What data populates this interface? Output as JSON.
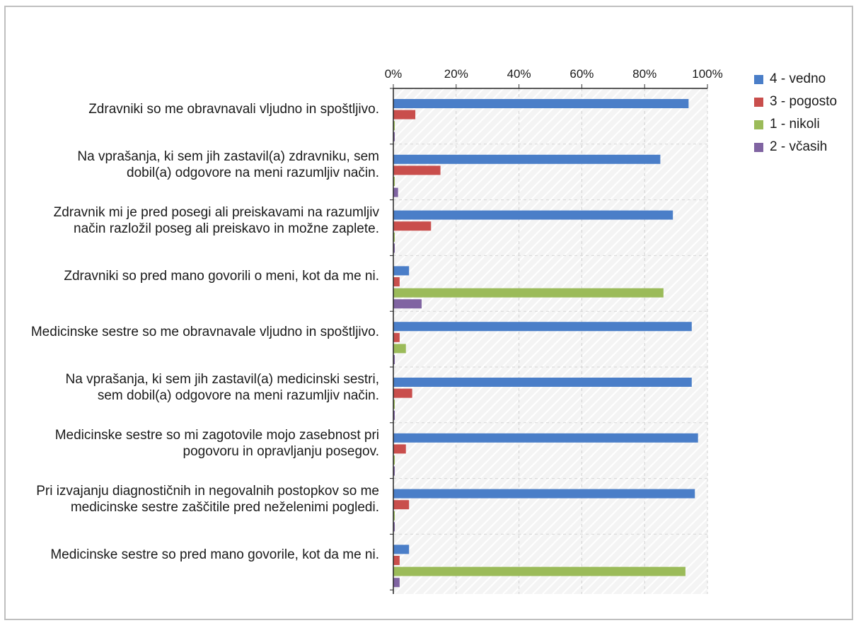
{
  "chart_data": {
    "type": "bar",
    "orientation": "horizontal",
    "xlim": [
      0,
      100
    ],
    "x_ticks": [
      "0%",
      "20%",
      "40%",
      "60%",
      "80%",
      "100%"
    ],
    "grid": true,
    "legend_position": "right",
    "categories": [
      "Zdravniki so me obravnavali vljudno in spoštljivo.",
      "Na vprašanja, ki sem jih zastavil(a) zdravniku, sem dobil(a) odgovore na meni razumljiv način.",
      "Zdravnik mi je pred posegi ali preiskavami na razumljiv način razložil poseg ali preiskavo in možne zaplete.",
      "Zdravniki so pred mano govorili o meni, kot da me ni.",
      "Medicinske sestre so me obravnavale vljudno in spoštljivo.",
      "Na vprašanja, ki sem jih zastavil(a) medicinski sestri, sem dobil(a) odgovore na meni razumljiv način.",
      "Medicinske sestre so mi zagotovile mojo zasebnost pri pogovoru in opravljanju posegov.",
      "Pri izvajanju diagnostičnih in negovalnih postopkov so me medicinske sestre zaščitile pred neželenimi pogledi.",
      "Medicinske sestre so pred mano govorile, kot da me ni."
    ],
    "category_lines": [
      [
        "Zdravniki so me obravnavali vljudno in spoštljivo."
      ],
      [
        "Na vprašanja, ki sem jih zastavil(a) zdravniku, sem",
        "dobil(a) odgovore na meni razumljiv način."
      ],
      [
        "Zdravnik mi je pred posegi ali preiskavami na razumljiv",
        "način razložil poseg ali preiskavo in možne zaplete."
      ],
      [
        "Zdravniki so pred mano govorili o meni, kot da me ni."
      ],
      [
        "Medicinske sestre so me obravnavale vljudno in spoštljivo."
      ],
      [
        "Na vprašanja, ki sem jih zastavil(a) medicinski sestri,",
        "sem dobil(a) odgovore na meni razumljiv način."
      ],
      [
        "Medicinske sestre so mi zagotovile mojo zasebnost pri",
        "pogovoru in opravljanju posegov."
      ],
      [
        "Pri izvajanju diagnostičnih in negovalnih postopkov so me",
        "medicinske sestre zaščitile pred neželenimi pogledi."
      ],
      [
        "Medicinske sestre so pred mano govorile, kot da me ni."
      ]
    ],
    "series": [
      {
        "name": "4 - vedno",
        "color": "#4a7ec8",
        "values": [
          94,
          85,
          89,
          5,
          95,
          95,
          97,
          96,
          5
        ]
      },
      {
        "name": "3 - pogosto",
        "color": "#c94e4c",
        "values": [
          7,
          15,
          12,
          2,
          2,
          6,
          4,
          5,
          2
        ]
      },
      {
        "name": "1 - nikoli",
        "color": "#9bbb59",
        "values": [
          0.3,
          0.3,
          0.3,
          86,
          4,
          0.3,
          0.3,
          0.3,
          93
        ]
      },
      {
        "name": "2 - včasih",
        "color": "#8064a2",
        "values": [
          0.3,
          1.5,
          0.3,
          9,
          0.3,
          0.3,
          0.3,
          0.3,
          2
        ]
      }
    ]
  }
}
